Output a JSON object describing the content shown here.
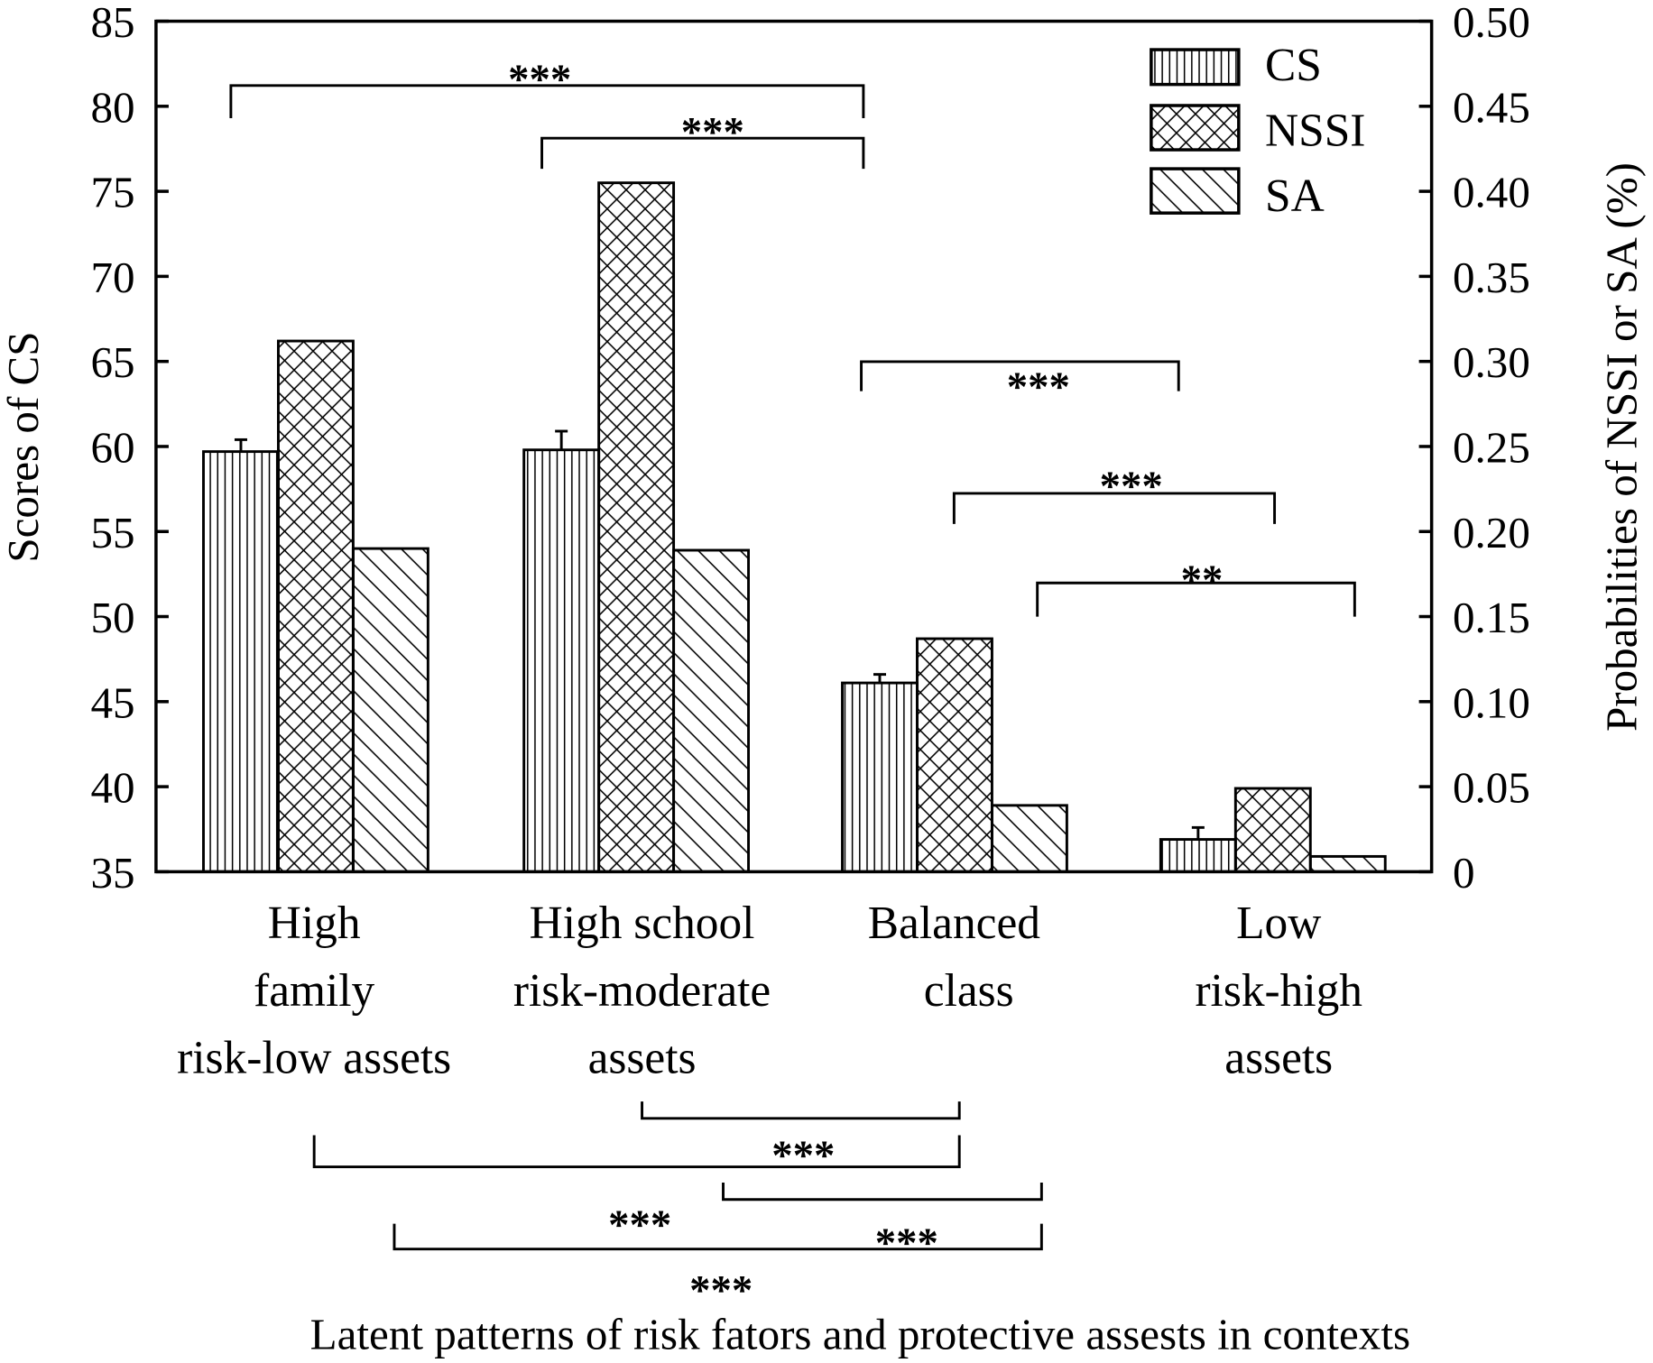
{
  "chart_data": {
    "type": "bar",
    "title": "",
    "xlabel": "Latent patterns of risk fators and protective assests in contexts",
    "ylabel": "Scores of CS",
    "y2label": "Probabilities of NSSI or SA (%)",
    "ylim": [
      35,
      85
    ],
    "y2lim": [
      0,
      0.5
    ],
    "yticks": [
      "35",
      "40",
      "45",
      "50",
      "55",
      "60",
      "65",
      "70",
      "75",
      "80",
      "85"
    ],
    "y2ticks": [
      "0",
      "0.05",
      "0.10",
      "0.15",
      "0.20",
      "0.25",
      "0.30",
      "0.35",
      "0.40",
      "0.45",
      "0.50"
    ],
    "categories": [
      [
        "High",
        "family",
        "risk-low assets"
      ],
      [
        "High school",
        "risk-moderate",
        "assets"
      ],
      [
        "Balanced",
        "class"
      ],
      [
        "Low",
        "risk-high",
        "assets"
      ]
    ],
    "series": [
      {
        "name": "CS",
        "axis": "left",
        "pattern": "vertical",
        "values": [
          59.7,
          59.8,
          46.1,
          36.9
        ],
        "error_upper": [
          60.4,
          60.9,
          46.6,
          37.6
        ]
      },
      {
        "name": "NSSI",
        "axis": "right",
        "pattern": "crosshatch",
        "values": [
          0.312,
          0.405,
          0.137,
          0.049
        ]
      },
      {
        "name": "SA",
        "axis": "right",
        "pattern": "diagonal",
        "values": [
          0.19,
          0.189,
          0.039,
          0.009
        ]
      }
    ],
    "legend": {
      "placement": "top-right",
      "entries": [
        "CS",
        "NSSI",
        "SA"
      ]
    },
    "annotations_top": [
      {
        "from": 0,
        "to": 2,
        "label": "***"
      },
      {
        "from": 1,
        "to": 2,
        "label": "***"
      },
      {
        "from": 2,
        "to": 3,
        "label": "***"
      },
      {
        "from": 2,
        "to": 3,
        "label": "***"
      },
      {
        "from": 2,
        "to": 3,
        "label": "**"
      }
    ],
    "annotations_bottom": [
      {
        "from": 1,
        "to": 2,
        "label": "***"
      },
      {
        "from": 0,
        "to": 2,
        "label": "***"
      },
      {
        "from": 1,
        "to": 3,
        "label": "***"
      },
      {
        "from": 0,
        "to": 3,
        "label": "***"
      }
    ]
  }
}
